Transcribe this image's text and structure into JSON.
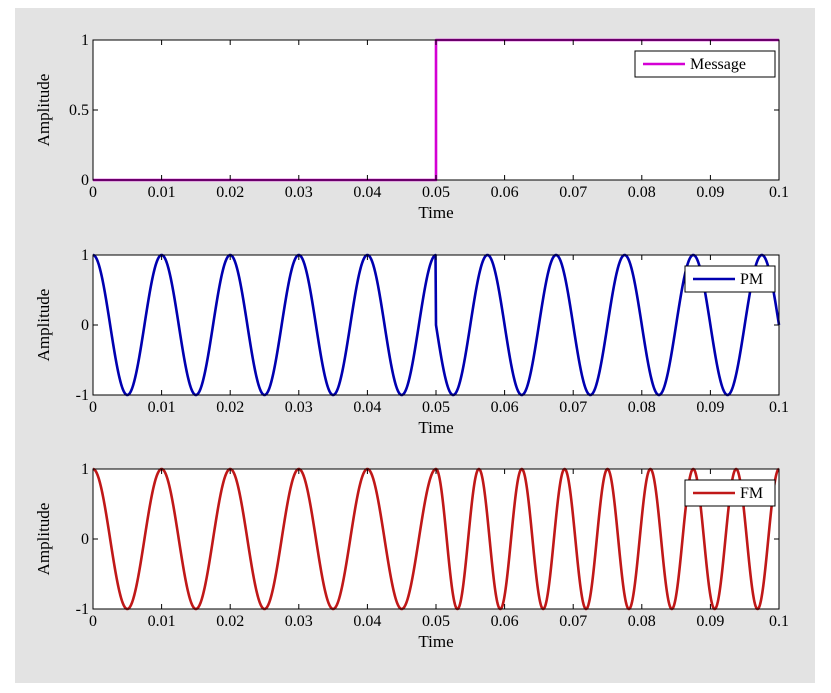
{
  "chart_data": [
    {
      "type": "line",
      "xlabel": "Time",
      "ylabel": "Amplitude",
      "xlim": [
        0,
        0.1
      ],
      "ylim": [
        0,
        1
      ],
      "xticks": [
        "0",
        "0.01",
        "0.02",
        "0.03",
        "0.04",
        "0.05",
        "0.06",
        "0.07",
        "0.08",
        "0.09",
        "0.1"
      ],
      "yticks": [
        "0",
        "0.5",
        "1"
      ],
      "legend_position": "top-right",
      "series": [
        {
          "name": "Message",
          "color": "#d400d4",
          "kind": "step",
          "step_at": 0.05,
          "low": 0,
          "high": 1
        }
      ]
    },
    {
      "type": "line",
      "xlabel": "Time",
      "ylabel": "Amplitude",
      "xlim": [
        0,
        0.1
      ],
      "ylim": [
        -1,
        1
      ],
      "xticks": [
        "0",
        "0.01",
        "0.02",
        "0.03",
        "0.04",
        "0.05",
        "0.06",
        "0.07",
        "0.08",
        "0.09",
        "0.1"
      ],
      "yticks": [
        "-1",
        "0",
        "1"
      ],
      "legend_position": "top-right",
      "series": [
        {
          "name": "PM",
          "color": "#0000b0",
          "kind": "pm",
          "carrier_hz": 100,
          "step_at": 0.05,
          "phase_shift_rad": 1.5708
        }
      ]
    },
    {
      "type": "line",
      "xlabel": "Time",
      "ylabel": "Amplitude",
      "xlim": [
        0,
        0.1
      ],
      "ylim": [
        -1,
        1
      ],
      "xticks": [
        "0",
        "0.01",
        "0.02",
        "0.03",
        "0.04",
        "0.05",
        "0.06",
        "0.07",
        "0.08",
        "0.09",
        "0.1"
      ],
      "yticks": [
        "-1",
        "0",
        "1"
      ],
      "legend_position": "top-right",
      "series": [
        {
          "name": "FM",
          "color": "#c01818",
          "kind": "fm",
          "carrier_hz": 100,
          "step_at": 0.05,
          "freq_after_hz": 160
        }
      ]
    }
  ]
}
